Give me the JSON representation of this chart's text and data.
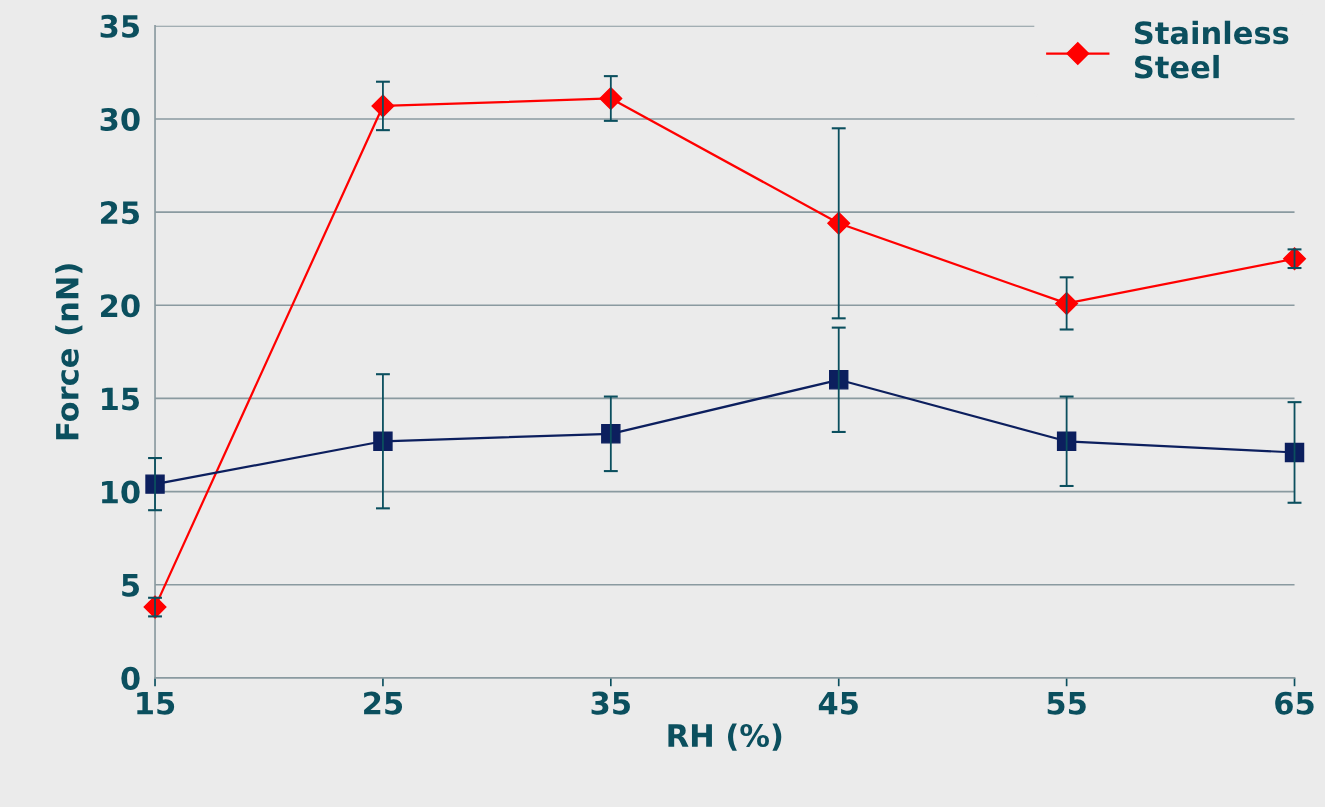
{
  "chart_data": {
    "type": "line",
    "xlabel": "RH (%)",
    "ylabel": "Force (nN)",
    "x": [
      15,
      25,
      35,
      45,
      55,
      65
    ],
    "series": [
      {
        "name": "Stainless Steel",
        "color": "#ff0000",
        "marker": "diamond",
        "values": [
          3.8,
          30.7,
          31.1,
          24.4,
          20.1,
          22.5
        ],
        "errors": [
          0.5,
          1.3,
          1.2,
          5.1,
          1.4,
          0.5
        ]
      },
      {
        "color": "#0c1f5e",
        "marker": "square",
        "values": [
          10.4,
          12.7,
          13.1,
          16.0,
          12.7,
          12.1
        ],
        "errors": [
          1.4,
          3.6,
          2.0,
          2.8,
          2.4,
          2.7
        ]
      }
    ],
    "xlim": [
      15,
      65
    ],
    "xticks": [
      15,
      25,
      35,
      45,
      55,
      65
    ],
    "ylim": [
      0,
      35
    ],
    "yticks": [
      0,
      5,
      10,
      15,
      20,
      25,
      30,
      35
    ],
    "grid": "y",
    "legend": "top right"
  }
}
